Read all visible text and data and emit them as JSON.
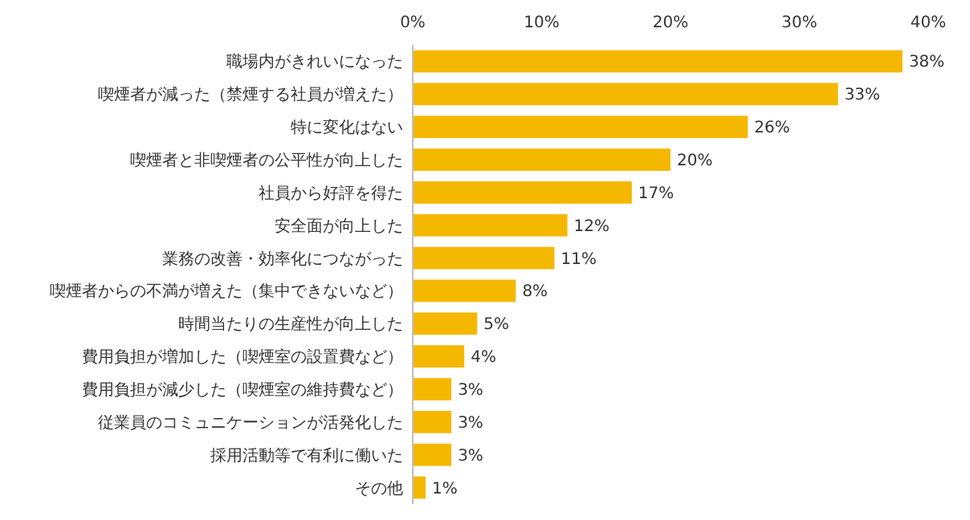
{
  "chart_data": {
    "type": "bar",
    "orientation": "horizontal",
    "color": "#f5b800",
    "categories": [
      "職場内がきれいになった",
      "喫煙者が減った（禁煙する社員が増えた）",
      "特に変化はない",
      "喫煙者と非喫煙者の公平性が向上した",
      "社員から好評を得た",
      "安全面が向上した",
      "業務の改善・効率化につながった",
      "喫煙者からの不満が増えた（集中できないなど）",
      "時間当たりの生産性が向上した",
      "費用負担が増加した（喫煙室の設置費など）",
      "費用負担が減少した（喫煙室の維持費など）",
      "従業員のコミュニケーションが活発化した",
      "採用活動等で有利に働いた",
      "その他"
    ],
    "values": [
      38,
      33,
      26,
      20,
      17,
      12,
      11,
      8,
      5,
      4,
      3,
      3,
      3,
      1
    ],
    "value_labels": [
      "38%",
      "33%",
      "26%",
      "20%",
      "17%",
      "12%",
      "11%",
      "8%",
      "5%",
      "4%",
      "3%",
      "3%",
      "3%",
      "1%"
    ],
    "xlim": [
      0,
      40
    ],
    "xticks": [
      {
        "value": 0,
        "label": "0%"
      },
      {
        "value": 10,
        "label": "10%"
      },
      {
        "value": 20,
        "label": "20%"
      },
      {
        "value": 30,
        "label": "30%"
      },
      {
        "value": 40,
        "label": "40%"
      }
    ]
  }
}
